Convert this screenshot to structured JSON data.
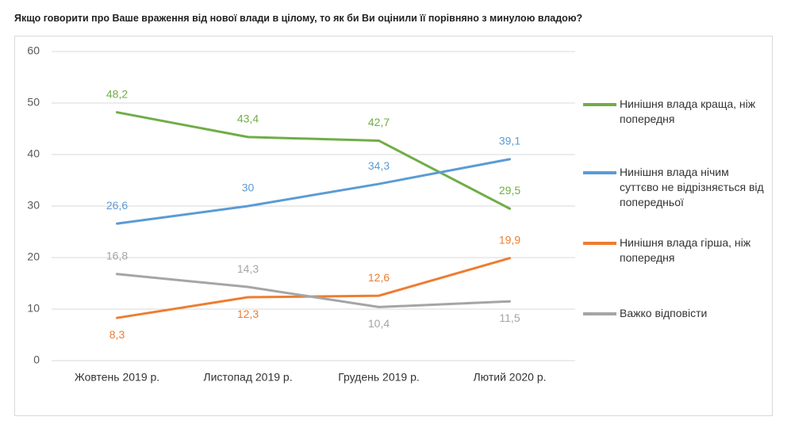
{
  "chart_data": {
    "type": "line",
    "title": "Якщо говорити про Ваше враження від нової влади в цілому, то як би Ви оцінили її порівняно з минулою владою?",
    "categories": [
      "Жовтень 2019 р.",
      "Листопад 2019 р.",
      "Грудень 2019 р.",
      "Лютий 2020 р."
    ],
    "series": [
      {
        "name": "Нинішня влада краща, ніж попередня",
        "color": "#70ad47",
        "values": [
          48.2,
          43.4,
          42.7,
          29.5
        ],
        "value_labels": [
          "48,2",
          "43,4",
          "42,7",
          "29,5"
        ]
      },
      {
        "name": "Нинішня влада нічим суттєво не відрізняється від попередньої",
        "color": "#5b9bd5",
        "values": [
          26.6,
          30,
          34.3,
          39.1
        ],
        "value_labels": [
          "26,6",
          "30",
          "34,3",
          "39,1"
        ]
      },
      {
        "name": "Нинішня влада гірша, ніж попередня",
        "color": "#ed7d31",
        "values": [
          8.3,
          12.3,
          12.6,
          19.9
        ],
        "value_labels": [
          "8,3",
          "12,3",
          "12,6",
          "19,9"
        ]
      },
      {
        "name": "Важко відповісти",
        "color": "#a5a5a5",
        "values": [
          16.8,
          14.3,
          10.4,
          11.5
        ],
        "value_labels": [
          "16,8",
          "14,3",
          "10,4",
          "11,5"
        ]
      }
    ],
    "ylim": [
      0,
      60
    ],
    "yticks": [
      0,
      10,
      20,
      30,
      40,
      50,
      60
    ],
    "grid": true,
    "legend": "right"
  }
}
